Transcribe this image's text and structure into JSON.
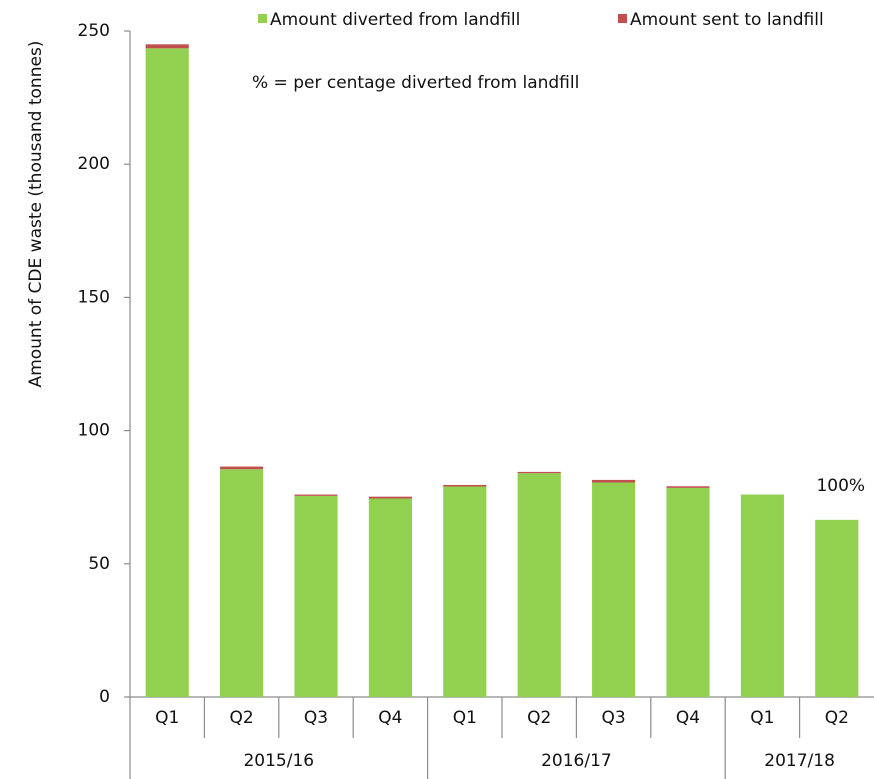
{
  "chart_data": {
    "type": "stacked-bar",
    "y_axis_label": "Amount of CDE waste (thousand tonnes)",
    "note": "% = per centage diverted from landfill",
    "bar_annotation": "100%",
    "groups": [
      {
        "name": "2015/16",
        "categories": [
          "Q1",
          "Q2",
          "Q3",
          "Q4"
        ]
      },
      {
        "name": "2016/17",
        "categories": [
          "Q1",
          "Q2",
          "Q3",
          "Q4"
        ]
      },
      {
        "name": "2017/18",
        "categories": [
          "Q1",
          "Q2"
        ]
      }
    ],
    "series": [
      {
        "name": "Amount diverted from landfill",
        "color": "#92d050",
        "values": [
          243.5,
          85.5,
          75.5,
          74.5,
          79,
          84,
          80.5,
          78.5,
          76,
          66.5
        ]
      },
      {
        "name": "Amount sent to landfill",
        "color": "#c0504d",
        "values": [
          1.5,
          1,
          0.5,
          0.7,
          0.6,
          0.5,
          1,
          0.6,
          0,
          0
        ]
      }
    ],
    "ylim": [
      0,
      250
    ],
    "yticks": [
      0,
      50,
      100,
      150,
      200,
      250
    ],
    "grid": false,
    "legend": "top"
  }
}
